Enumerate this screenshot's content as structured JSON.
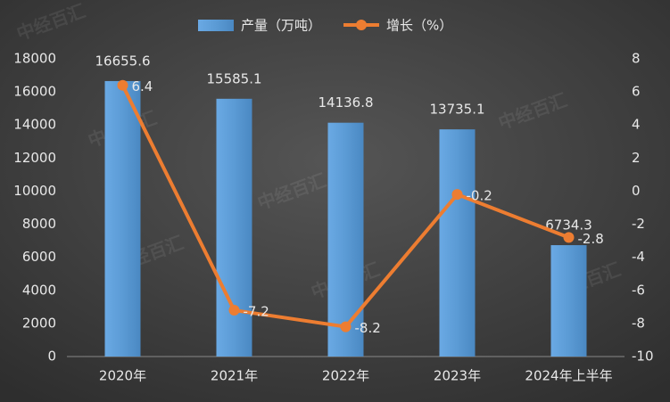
{
  "chart_data": {
    "type": "bar",
    "categories": [
      "2020年",
      "2021年",
      "2022年",
      "2023年",
      "2024年上半年"
    ],
    "series": [
      {
        "name": "产量（万吨）",
        "type": "bar",
        "color": "#5b9bd5",
        "values": [
          16655.6,
          15585.1,
          14136.8,
          13735.1,
          6734.3
        ]
      },
      {
        "name": "增长（%）",
        "type": "line",
        "axis": "y2",
        "color": "#ed7d31",
        "values": [
          6.4,
          -7.2,
          -8.2,
          -0.2,
          -2.8
        ]
      }
    ],
    "ylim": [
      0,
      18000
    ],
    "yticks": [
      0,
      2000,
      4000,
      6000,
      8000,
      10000,
      12000,
      14000,
      16000,
      18000
    ],
    "y2lim": [
      -10,
      8
    ],
    "y2ticks": [
      -10,
      -8,
      -6,
      -4,
      -2,
      0,
      2,
      4,
      6,
      8
    ],
    "legend": "top",
    "watermark": "中经百汇"
  }
}
